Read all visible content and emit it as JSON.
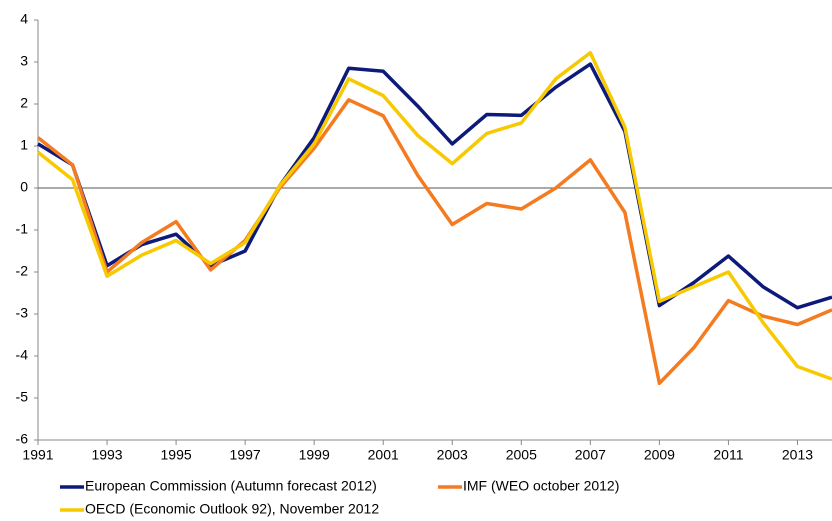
{
  "chart_data": {
    "type": "line",
    "x": [
      1991,
      1992,
      1993,
      1994,
      1995,
      1996,
      1997,
      1998,
      1999,
      2000,
      2001,
      2002,
      2003,
      2004,
      2005,
      2006,
      2007,
      2008,
      2009,
      2010,
      2011,
      2012,
      2013,
      2014
    ],
    "series": [
      {
        "name": "European Commission (Autumn forecast 2012)",
        "color": "#0d1a7a",
        "values": [
          1.05,
          0.55,
          -1.85,
          -1.35,
          -1.1,
          -1.85,
          -1.5,
          0.05,
          1.2,
          2.85,
          2.78,
          1.95,
          1.05,
          1.75,
          1.73,
          2.4,
          2.95,
          1.35,
          -2.8,
          -2.25,
          -1.62,
          -2.35,
          -2.85,
          -2.6
        ]
      },
      {
        "name": "IMF (WEO october 2012)",
        "color": "#f47b20",
        "values": [
          1.2,
          0.55,
          -2.0,
          -1.3,
          -0.8,
          -1.95,
          -1.25,
          0.0,
          0.95,
          2.1,
          1.72,
          0.3,
          -0.87,
          -0.37,
          -0.5,
          0.0,
          0.67,
          -0.58,
          -4.65,
          -3.8,
          -2.68,
          -3.05,
          -3.25,
          -2.9
        ]
      },
      {
        "name": "OECD (Economic Outlook 92), November 2012",
        "color": "#f7c900",
        "values": [
          0.85,
          0.2,
          -2.1,
          -1.6,
          -1.25,
          -1.8,
          -1.3,
          0.05,
          1.05,
          2.6,
          2.2,
          1.25,
          0.58,
          1.3,
          1.55,
          2.6,
          3.22,
          1.45,
          -2.7,
          -2.35,
          -2.0,
          -3.2,
          -4.25,
          -4.55
        ]
      }
    ],
    "xlim": [
      1991,
      2014
    ],
    "xticks": [
      1991,
      1993,
      1995,
      1997,
      1999,
      2001,
      2003,
      2005,
      2007,
      2009,
      2011,
      2013
    ],
    "ylim": [
      -6,
      4
    ],
    "yticks": [
      -6,
      -5,
      -4,
      -3,
      -2,
      -1,
      0,
      1,
      2,
      3,
      4
    ],
    "legend": "bottom"
  }
}
